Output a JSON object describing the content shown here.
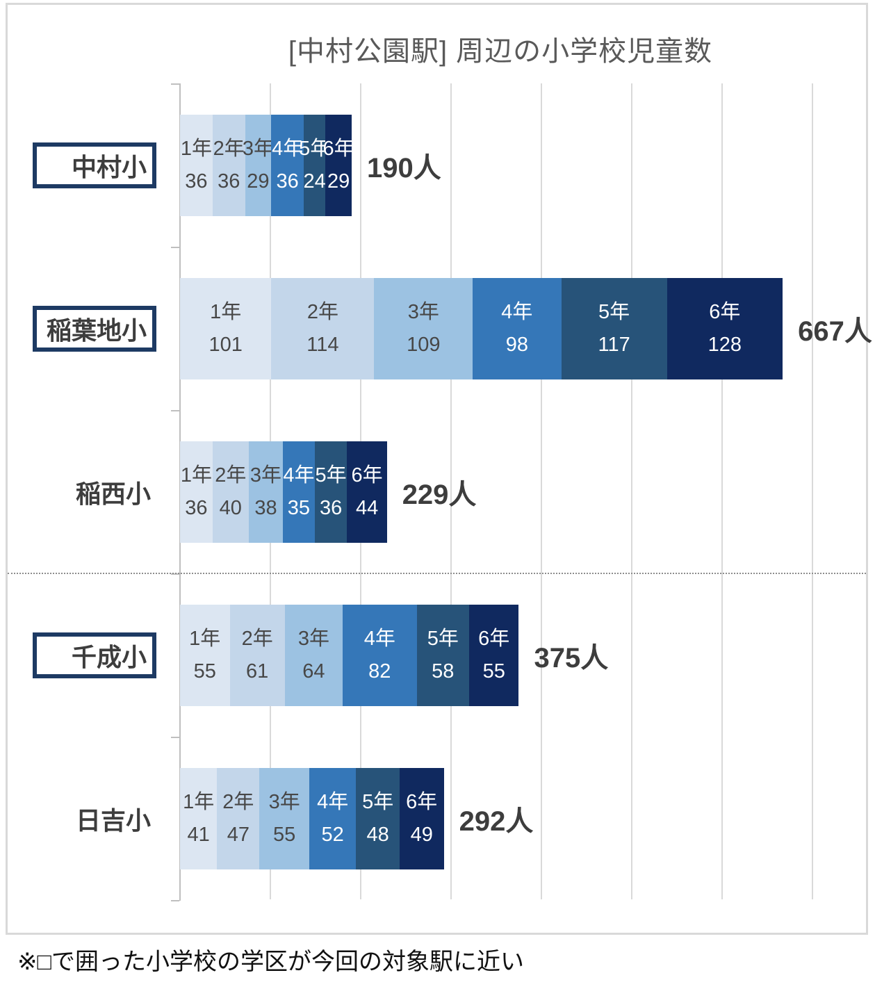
{
  "title": "[中村公園駅] 周辺の小学校児童数",
  "note": "※□で囲った小学校の学区が今回の対象駅に近い",
  "chart_data": {
    "type": "bar",
    "orientation": "horizontal",
    "stacked": true,
    "value_unit": "人",
    "title": "[中村公園駅] 周辺の小学校児童数",
    "series": [
      "1年",
      "2年",
      "3年",
      "4年",
      "5年",
      "6年"
    ],
    "series_colors": [
      "#dce6f2",
      "#c3d6ea",
      "#9cc2e2",
      "#3577b8",
      "#275379",
      "#10295f"
    ],
    "categories": [
      "中村小",
      "稲葉地小",
      "稲西小",
      "千成小",
      "日吉小"
    ],
    "rows": [
      {
        "school": "中村小",
        "boxed": true,
        "values": [
          36,
          36,
          29,
          36,
          24,
          29
        ],
        "total": 190,
        "total_label": "190人"
      },
      {
        "school": "稲葉地小",
        "boxed": true,
        "values": [
          101,
          114,
          109,
          98,
          117,
          128
        ],
        "total": 667,
        "total_label": "667人"
      },
      {
        "school": "稲西小",
        "boxed": false,
        "values": [
          36,
          40,
          38,
          35,
          36,
          44
        ],
        "total": 229,
        "total_label": "229人"
      },
      {
        "school": "千成小",
        "boxed": true,
        "values": [
          55,
          61,
          64,
          82,
          58,
          55
        ],
        "total": 375,
        "total_label": "375人"
      },
      {
        "school": "日吉小",
        "boxed": false,
        "values": [
          41,
          47,
          55,
          52,
          48,
          49
        ],
        "total": 292,
        "total_label": "292人"
      }
    ],
    "x_axis": {
      "min": 0,
      "gridline_interval": 100,
      "visible_gridlines": 8,
      "tick_labels_visible": false
    },
    "legend": "none",
    "grid": true,
    "annotations": [
      "※□で囲った小学校の学区が今回の対象駅に近い"
    ]
  },
  "style": {
    "box_border_color": "#1d3a63",
    "grid_color": "#d9d9d9",
    "axis_color": "#bfbfbf",
    "separator_color": "#8c8c8c",
    "frame_border_color": "#d9d9d9",
    "title_color": "#595959",
    "label_color": "#3d3d3d",
    "bar_text_dark": "#474747",
    "bar_text_light": "#ffffff",
    "dark_text_segment_count": 3
  }
}
